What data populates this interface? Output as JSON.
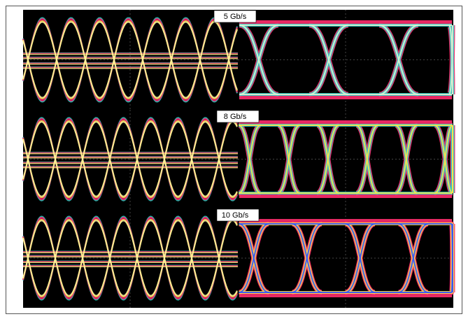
{
  "panels": [
    {
      "label": "5 Gb/s"
    },
    {
      "label": "8 Gb/s"
    },
    {
      "label": "10 Gb/s"
    }
  ]
}
